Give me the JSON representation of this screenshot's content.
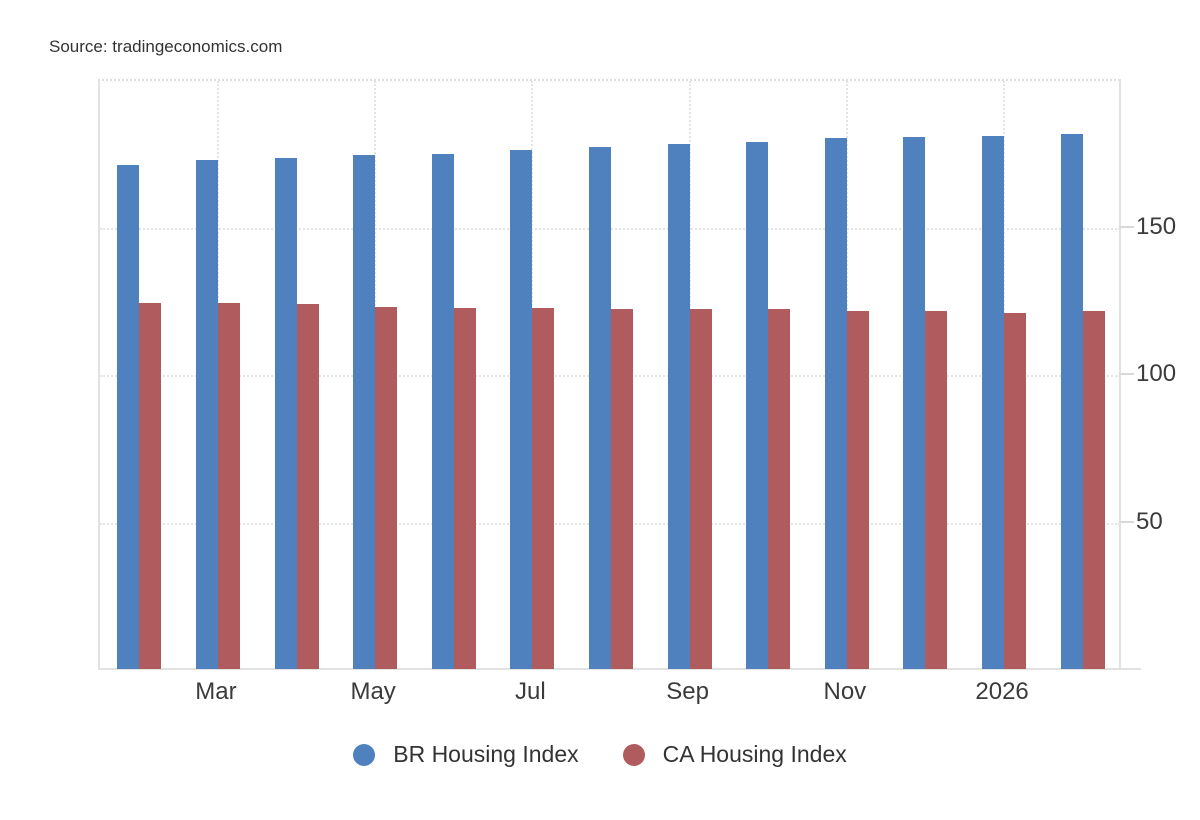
{
  "source": {
    "text": "Source: tradingeconomics.com"
  },
  "chart_data": {
    "type": "bar",
    "title": "",
    "categories": [
      "",
      "Mar",
      "",
      "May",
      "",
      "Jul",
      "",
      "Sep",
      "",
      "Nov",
      "",
      "2026",
      ""
    ],
    "x_tick_labels": [
      "Mar",
      "May",
      "Jul",
      "Sep",
      "Nov",
      "2026"
    ],
    "series": [
      {
        "name": "BR Housing Index",
        "color": "#4e81bd",
        "values": [
          171.0,
          172.4,
          173.3,
          174.2,
          174.6,
          175.9,
          176.8,
          177.9,
          178.5,
          180.0,
          180.3,
          180.8,
          181.5
        ]
      },
      {
        "name": "CA Housing Index",
        "color": "#b05c5e",
        "values": [
          124.2,
          124.2,
          123.8,
          122.8,
          122.5,
          122.4,
          122.0,
          122.2,
          121.9,
          121.5,
          121.4,
          120.8,
          121.2
        ]
      }
    ],
    "ylim": [
      0,
      200
    ],
    "yticks": [
      50,
      100,
      150
    ],
    "grid": "dotted",
    "legend_position": "bottom",
    "colors": {
      "axis_line": "#e2e2e2",
      "gridline": "#e4e4e4",
      "text": "#3b3b3b"
    }
  }
}
